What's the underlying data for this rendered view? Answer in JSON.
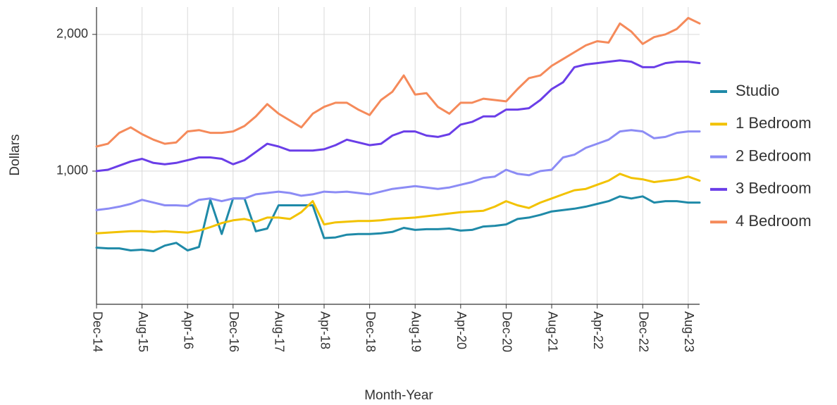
{
  "chart_data": {
    "type": "line",
    "xlabel": "Month-Year",
    "ylabel": "Dollars",
    "categories": [
      "Dec-14",
      null,
      null,
      null,
      "Aug-15",
      null,
      null,
      null,
      "Apr-16",
      null,
      null,
      null,
      "Dec-16",
      null,
      null,
      null,
      "Aug-17",
      null,
      null,
      null,
      "Apr-18",
      null,
      null,
      null,
      "Dec-18",
      null,
      null,
      null,
      "Aug-19",
      null,
      null,
      null,
      "Apr-20",
      null,
      null,
      null,
      "Dec-20",
      null,
      null,
      null,
      "Aug-21",
      null,
      null,
      null,
      "Apr-22",
      null,
      null,
      null,
      "Dec-22",
      null,
      null,
      null,
      "Aug-23",
      null
    ],
    "series": [
      {
        "name": "Studio",
        "color": "#1f8aa8",
        "values": [
          440,
          435,
          435,
          420,
          425,
          415,
          455,
          475,
          420,
          445,
          790,
          540,
          800,
          800,
          560,
          580,
          750,
          750,
          750,
          750,
          510,
          515,
          535,
          540,
          540,
          545,
          555,
          585,
          570,
          575,
          575,
          580,
          565,
          570,
          595,
          600,
          610,
          650,
          660,
          680,
          705,
          715,
          725,
          740,
          760,
          780,
          815,
          800,
          815,
          770,
          780,
          780,
          770,
          770
        ]
      },
      {
        "name": "1 Bedroom",
        "color": "#f2c200",
        "values": [
          545,
          550,
          555,
          560,
          560,
          555,
          560,
          555,
          550,
          565,
          590,
          620,
          640,
          650,
          630,
          660,
          660,
          650,
          700,
          780,
          610,
          625,
          630,
          635,
          635,
          640,
          650,
          655,
          660,
          670,
          680,
          690,
          700,
          705,
          710,
          740,
          780,
          750,
          730,
          770,
          800,
          830,
          860,
          870,
          900,
          930,
          980,
          950,
          940,
          920,
          930,
          940,
          960,
          930
        ]
      },
      {
        "name": "2 Bedroom",
        "color": "#8c8cf5",
        "values": [
          715,
          725,
          740,
          760,
          790,
          770,
          750,
          750,
          745,
          790,
          800,
          780,
          800,
          800,
          830,
          840,
          850,
          840,
          820,
          830,
          850,
          845,
          850,
          840,
          830,
          850,
          870,
          880,
          890,
          880,
          870,
          880,
          900,
          920,
          950,
          960,
          1010,
          980,
          970,
          1000,
          1010,
          1100,
          1120,
          1170,
          1200,
          1230,
          1290,
          1300,
          1290,
          1240,
          1250,
          1280,
          1290,
          1290
        ]
      },
      {
        "name": "3 Bedroom",
        "color": "#6a3ee8",
        "values": [
          1000,
          1010,
          1040,
          1070,
          1090,
          1060,
          1050,
          1060,
          1080,
          1100,
          1100,
          1090,
          1050,
          1080,
          1140,
          1200,
          1180,
          1150,
          1150,
          1150,
          1160,
          1190,
          1230,
          1210,
          1190,
          1200,
          1260,
          1290,
          1290,
          1260,
          1250,
          1270,
          1340,
          1360,
          1400,
          1400,
          1450,
          1450,
          1460,
          1520,
          1600,
          1650,
          1760,
          1780,
          1790,
          1800,
          1810,
          1800,
          1760,
          1760,
          1790,
          1800,
          1800,
          1790
        ]
      },
      {
        "name": "4 Bedroom",
        "color": "#f58a5a",
        "values": [
          1180,
          1200,
          1280,
          1320,
          1270,
          1230,
          1200,
          1210,
          1290,
          1300,
          1280,
          1280,
          1290,
          1330,
          1400,
          1490,
          1420,
          1370,
          1320,
          1420,
          1470,
          1500,
          1500,
          1450,
          1410,
          1520,
          1580,
          1700,
          1560,
          1570,
          1470,
          1420,
          1500,
          1500,
          1530,
          1520,
          1510,
          1600,
          1680,
          1700,
          1770,
          1820,
          1870,
          1920,
          1950,
          1940,
          2080,
          2020,
          1930,
          1980,
          2000,
          2040,
          2120,
          2080
        ]
      }
    ],
    "ylim": [
      26,
      2200
    ],
    "yticks": [
      {
        "value": 1000,
        "label": "1,000"
      },
      {
        "value": 2000,
        "label": "2,000"
      }
    ],
    "grid": true,
    "legend": "right"
  }
}
